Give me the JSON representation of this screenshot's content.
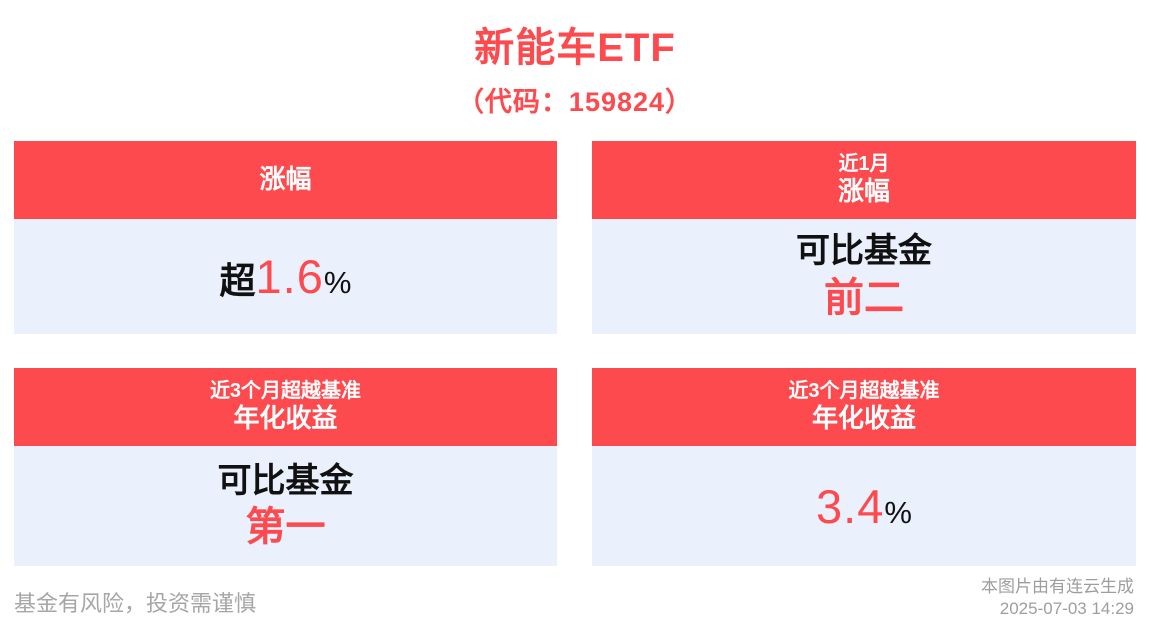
{
  "title": "新能车ETF",
  "subtitle": "（代码：159824）",
  "colors": {
    "accent_red": "#fc4a4f",
    "card_body_bg": "#ebf1fc",
    "muted_gray": "#a6a6a6",
    "header_text": "#ffffff"
  },
  "cards": [
    {
      "header_main": "涨幅",
      "value_prefix": "超",
      "value": "1.6",
      "value_suffix": "%"
    },
    {
      "header_small": "近1月",
      "header_main": "涨幅",
      "body_line1": "可比基金",
      "body_line2": "前二"
    },
    {
      "header_small": "近3个月超越基准",
      "header_main": "年化收益",
      "body_line1": "可比基金",
      "body_line2": "第一"
    },
    {
      "header_small": "近3个月超越基准",
      "header_main": "年化收益",
      "value": "3.4",
      "value_suffix": "%"
    }
  ],
  "footer": {
    "disclaimer": "基金有风险，投资需谨慎",
    "generator_note": "本图片由有连云生成",
    "generated_at": "2025-07-03 14:29"
  }
}
